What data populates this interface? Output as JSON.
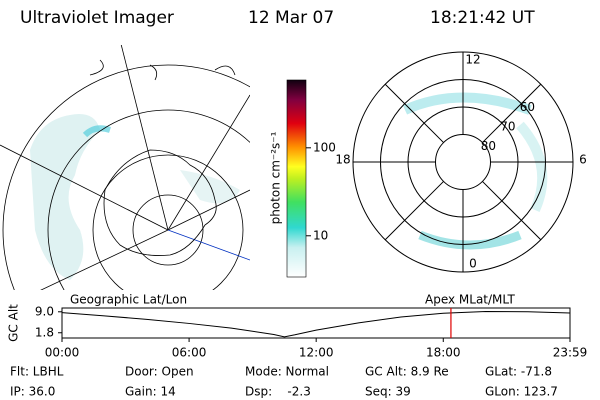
{
  "header": {
    "title": "Ultraviolet Imager",
    "date": "12 Mar 07",
    "time": "18:21:42 UT"
  },
  "colorbar": {
    "label": "photon cm⁻²s⁻¹",
    "log": true,
    "ylim": [
      3.4,
      590
    ],
    "yticks": [
      10,
      100
    ]
  },
  "polar_plot": {
    "rlim": [
      90,
      50
    ],
    "lat_ticks": [
      60,
      70,
      80
    ],
    "mlt_ticks": [
      12,
      18,
      6,
      0
    ]
  },
  "chart_data": {
    "type": "line",
    "title_left": "Geographic Lat/Lon",
    "title_right": "Apex MLat/MLT",
    "ylabel": "GC Alt",
    "x": [
      0,
      2,
      4,
      6,
      8,
      10,
      10.5,
      11,
      12,
      14,
      16,
      18,
      20,
      22,
      23.983
    ],
    "values": [
      8.7,
      7.6,
      6.4,
      5.0,
      3.4,
      1.2,
      0.4,
      1.1,
      2.7,
      5.2,
      7.2,
      8.5,
      9.1,
      9.0,
      8.6
    ],
    "color": "#000000",
    "xlim": [
      0,
      23.983
    ],
    "xticks": [
      {
        "value": 0,
        "label": "00:00"
      },
      {
        "value": 6,
        "label": "06:00"
      },
      {
        "value": 12,
        "label": "12:00"
      },
      {
        "value": 18,
        "label": "18:00"
      },
      {
        "value": 23.983,
        "label": "23:59"
      }
    ],
    "ylim": [
      0,
      10.3
    ],
    "yticks": [
      {
        "value": 9,
        "label": "9.0"
      },
      1.8
    ],
    "marker_x": 18.362,
    "marker_color": "#e00000"
  },
  "status": [
    [
      "Flt: LBHL",
      "Door: Open",
      "Mode: Normal",
      "GC Alt: 8.9 Re",
      "GLat: -71.8"
    ],
    [
      "IP: 36.0",
      "Gain: 14",
      "Dsp:    -2.3",
      "Seq: 39",
      "GLon: 123.7"
    ]
  ]
}
